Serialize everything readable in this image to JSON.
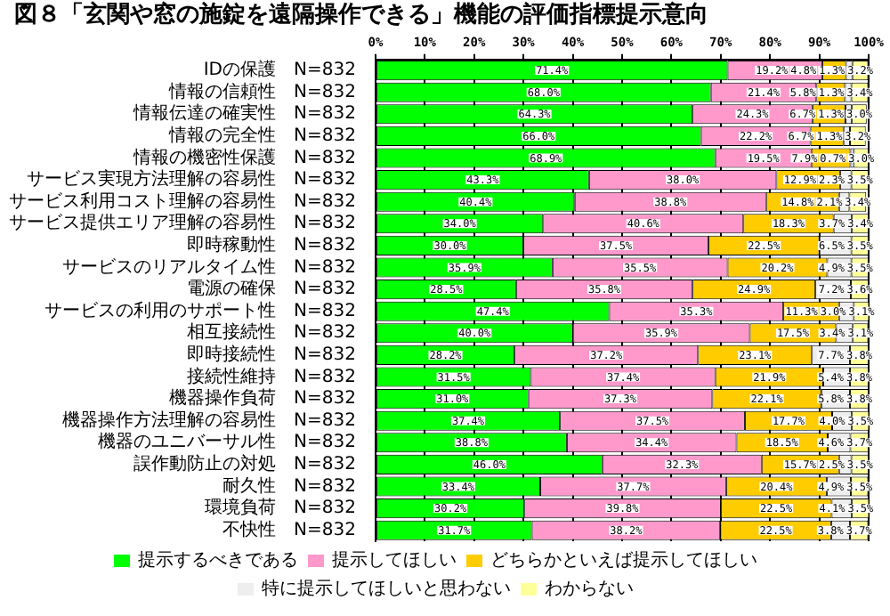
{
  "chart_data": {
    "type": "bar",
    "orientation": "horizontal",
    "stacked": true,
    "title": "図８「玄関や窓の施錠を遠隔操作できる」機能の評価指標提示意向",
    "categories": [
      "IDの保護　N=832",
      "情報の信頼性　N=832",
      "情報伝達の確実性　N=832",
      "情報の完全性　N=832",
      "情報の機密性保護　N=832",
      "サービス実現方法理解の容易性　N=832",
      "サービス利用コスト理解の容易性　N=832",
      "サービス提供エリア理解の容易性　N=832",
      "即時稼動性　N=832",
      "サービスのリアルタイム性　N=832",
      "電源の確保　N=832",
      "サービスの利用のサポート性　N=832",
      "相互接続性　N=832",
      "即時接続性　N=832",
      "接続性維持　N=832",
      "機器操作負荷　N=832",
      "機器操作方法理解の容易性　N=832",
      "機器のユニバーサル性　N=832",
      "誤作動防止の対処　N=832",
      "耐久性　N=832",
      "環境負荷　N=832",
      "不快性　N=832"
    ],
    "series": [
      {
        "name": "提示するべきである",
        "color": "#00ff00",
        "values": [
          71.4,
          68.0,
          64.3,
          66.0,
          68.9,
          43.3,
          40.4,
          34.0,
          30.0,
          35.9,
          28.5,
          47.4,
          40.0,
          28.2,
          31.5,
          31.0,
          37.4,
          38.8,
          46.0,
          33.4,
          30.2,
          31.7
        ],
        "value_labels": [
          "71.4%",
          "68.0%",
          "64.3%",
          "66.0%",
          "68.9%",
          "43.3%",
          "40.4%",
          "34.0%",
          "30.0%",
          "35.9%",
          "28.5%",
          "47.4%",
          "40.0%",
          "28.2%",
          "31.5%",
          "31.0%",
          "37.4%",
          "38.8%",
          "46.0%",
          "33.4%",
          "30.2%",
          "31.7%"
        ]
      },
      {
        "name": "提示してほしい",
        "color": "#ff99cc",
        "values": [
          19.2,
          21.4,
          24.3,
          22.2,
          19.5,
          38.0,
          38.8,
          40.6,
          37.5,
          35.5,
          35.8,
          35.3,
          35.9,
          37.2,
          37.4,
          37.3,
          37.5,
          34.4,
          32.3,
          37.7,
          39.8,
          38.2
        ],
        "value_labels": [
          "19.2%",
          "21.4%",
          "24.3%",
          "22.2%",
          "19.5%",
          "38.0%",
          "38.8%",
          "40.6%",
          "37.5%",
          "35.5%",
          "35.8%",
          "35.3%",
          "35.9%",
          "37.2%",
          "37.4%",
          "37.3%",
          "37.5%",
          "34.4%",
          "32.3%",
          "37.7%",
          "39.8%",
          "38.2%"
        ]
      },
      {
        "name": "どちらかといえば提示してほしい",
        "color": "#ffcc00",
        "values": [
          4.8,
          5.8,
          6.7,
          6.7,
          7.9,
          12.9,
          14.8,
          18.3,
          22.5,
          20.2,
          24.9,
          11.3,
          17.5,
          23.1,
          21.9,
          22.1,
          17.7,
          18.5,
          15.7,
          20.4,
          22.5,
          22.5
        ],
        "value_labels": [
          "4.8%",
          "5.8%",
          "6.7%",
          "6.7%",
          "7.9%",
          "12.9%",
          "14.8%",
          "18.3%",
          "22.5%",
          "20.2%",
          "24.9%",
          "11.3%",
          "17.5%",
          "23.1%",
          "21.9%",
          "22.1%",
          "17.7%",
          "18.5%",
          "15.7%",
          "20.4%",
          "22.5%",
          "22.5%"
        ]
      },
      {
        "name": "特に提示してほしいと思わない",
        "color": "#eeeeee",
        "values": [
          1.3,
          1.3,
          1.3,
          1.3,
          0.7,
          2.3,
          2.1,
          3.7,
          6.5,
          4.9,
          7.2,
          3.0,
          3.4,
          7.7,
          5.4,
          5.8,
          4.0,
          4.6,
          2.5,
          4.9,
          4.1,
          3.8
        ],
        "value_labels": [
          "1.3%",
          "1.3%",
          "1.3%",
          "1.3%",
          "0.7%",
          "2.3%",
          "2.1%",
          "3.7%",
          "6.5%",
          "4.9%",
          "7.2%",
          "3.0%",
          "3.4%",
          "7.7%",
          "5.4%",
          "5.8%",
          "4.0%",
          "4.6%",
          "2.5%",
          "4.9%",
          "4.1%",
          "3.8%"
        ]
      },
      {
        "name": "わからない",
        "color": "#ffff99",
        "values": [
          3.2,
          3.4,
          3.0,
          3.2,
          3.0,
          3.5,
          3.4,
          3.4,
          3.5,
          3.5,
          3.6,
          3.1,
          3.1,
          3.8,
          3.8,
          3.8,
          3.5,
          3.7,
          3.5,
          3.5,
          3.5,
          3.7
        ],
        "value_labels": [
          "3.2%",
          "3.4%",
          "3.0%",
          "3.2%",
          "3.0%",
          "3.5%",
          "3.4%",
          "3.4%",
          "3.5%",
          "3.5%",
          "3.6%",
          "3.1%",
          "3.1%",
          "3.8%",
          "3.8%",
          "3.8%",
          "3.5%",
          "3.7%",
          "3.5%",
          "3.5%",
          "3.5%",
          "3.7%"
        ]
      }
    ],
    "xlim": [
      0,
      100
    ],
    "xticks": [
      {
        "value": 0,
        "label": "0%"
      },
      {
        "value": 10,
        "label": "10%"
      },
      {
        "value": 20,
        "label": "20%"
      },
      {
        "value": 30,
        "label": "30%"
      },
      {
        "value": 40,
        "label": "40%"
      },
      {
        "value": 50,
        "label": "50%"
      },
      {
        "value": 60,
        "label": "60%"
      },
      {
        "value": 70,
        "label": "70%"
      },
      {
        "value": 80,
        "label": "80%"
      },
      {
        "value": 90,
        "label": "90%"
      },
      {
        "value": 100,
        "label": "100%"
      }
    ],
    "grid": "x",
    "legend": "bottom"
  }
}
